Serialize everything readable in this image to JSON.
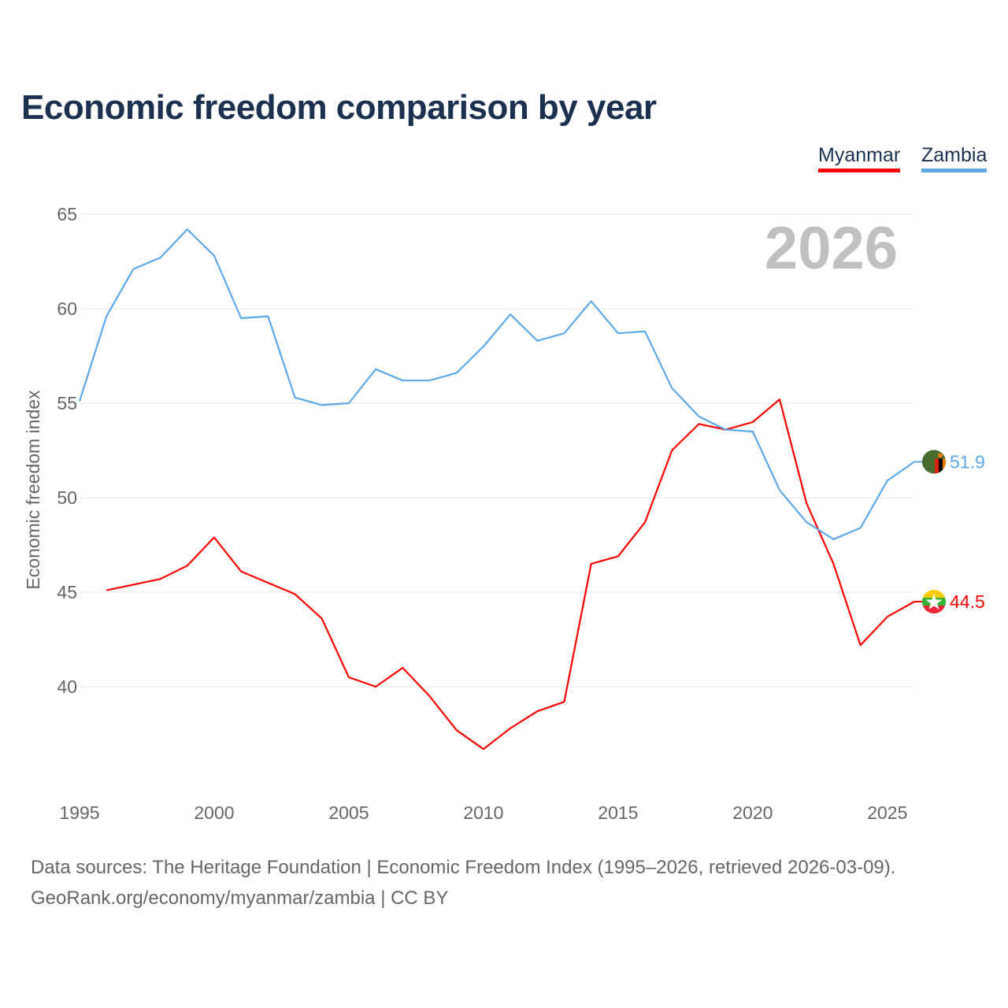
{
  "chart_data": {
    "type": "line",
    "title": "Economic freedom comparison by year",
    "ylabel": "Economic freedom index",
    "xlabel": "",
    "year_label": "2026",
    "xlim": [
      1995,
      2026
    ],
    "ylim": [
      40,
      65
    ],
    "x_ticks": [
      1995,
      2000,
      2005,
      2010,
      2015,
      2020,
      2025
    ],
    "y_ticks": [
      40,
      45,
      50,
      55,
      60,
      65
    ],
    "grid": true,
    "legend": "top-right",
    "series": [
      {
        "name": "Myanmar",
        "color": "#ff0000",
        "flag": "myanmar-flag",
        "end_label": "44.5",
        "x": [
          1996,
          1997,
          1998,
          1999,
          2000,
          2001,
          2002,
          2003,
          2004,
          2005,
          2006,
          2007,
          2008,
          2009,
          2010,
          2011,
          2012,
          2013,
          2014,
          2015,
          2016,
          2017,
          2018,
          2019,
          2020,
          2021,
          2022,
          2023,
          2024,
          2025,
          2026
        ],
        "values": [
          45.1,
          45.4,
          45.7,
          46.4,
          47.9,
          46.1,
          45.5,
          44.9,
          43.6,
          40.5,
          40.0,
          41.0,
          39.5,
          37.7,
          36.7,
          37.8,
          38.7,
          39.2,
          46.5,
          46.9,
          48.7,
          52.5,
          53.9,
          53.6,
          54.0,
          55.2,
          49.7,
          46.5,
          42.2,
          43.7,
          44.5
        ]
      },
      {
        "name": "Zambia",
        "color": "#5fa8e8",
        "flag": "zambia-flag",
        "end_label": "51.9",
        "x": [
          1995,
          1996,
          1997,
          1998,
          1999,
          2000,
          2001,
          2002,
          2003,
          2004,
          2005,
          2006,
          2007,
          2008,
          2009,
          2010,
          2011,
          2012,
          2013,
          2014,
          2015,
          2016,
          2017,
          2018,
          2019,
          2020,
          2021,
          2022,
          2023,
          2024,
          2025,
          2026
        ],
        "values": [
          55.1,
          59.6,
          62.1,
          62.7,
          64.2,
          62.8,
          59.5,
          59.6,
          55.3,
          54.9,
          55.0,
          56.8,
          56.2,
          56.2,
          56.6,
          58.0,
          59.7,
          58.3,
          58.7,
          60.4,
          58.7,
          58.8,
          55.8,
          54.3,
          53.6,
          53.5,
          50.4,
          48.7,
          47.8,
          48.4,
          50.9,
          51.9
        ]
      }
    ]
  },
  "footer": {
    "line1": "Data sources: The Heritage Foundation | Economic Freedom Index (1995–2026, retrieved 2026-03-09).",
    "line2": "GeoRank.org/economy/myanmar/zambia | CC BY"
  }
}
